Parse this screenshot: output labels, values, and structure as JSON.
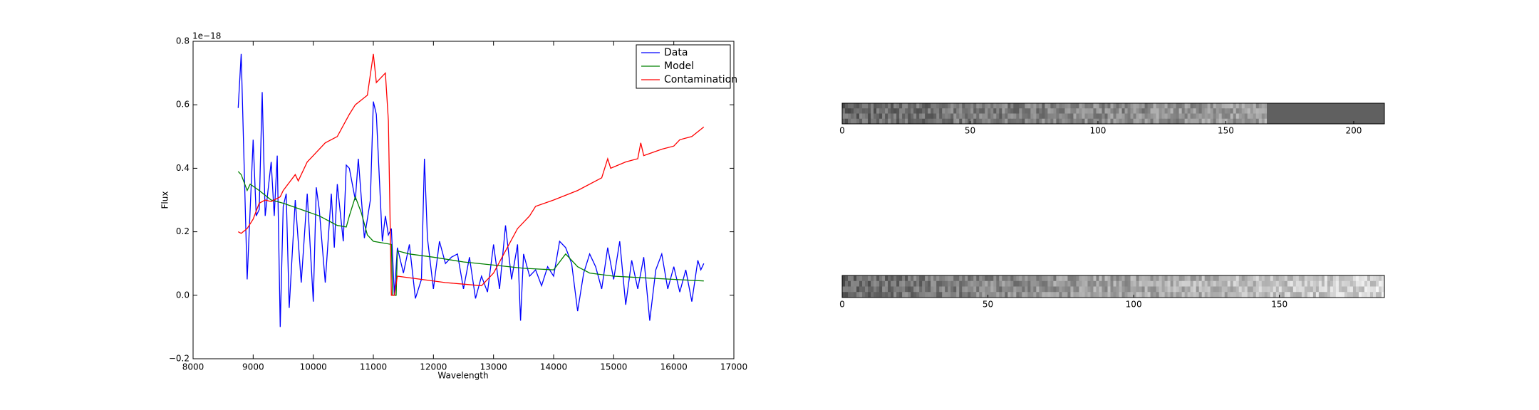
{
  "chart_data": [
    {
      "type": "line",
      "annotation": "1e−18",
      "xlabel": "Wavelength",
      "ylabel": "Flux",
      "xlim": [
        8000,
        17000
      ],
      "xticks": [
        8000,
        9000,
        10000,
        11000,
        12000,
        13000,
        14000,
        15000,
        16000,
        17000
      ],
      "ylim": [
        -0.2,
        0.8
      ],
      "yticks": [
        {
          "value": -0.2,
          "label": "−0.2"
        },
        {
          "value": 0,
          "label": "0.0"
        },
        0.2,
        0.4,
        0.6,
        0.8
      ],
      "legend": "upper right",
      "series": [
        {
          "name": "Data",
          "color": "#0000ff",
          "x": [
            8750,
            8800,
            8900,
            9000,
            9050,
            9100,
            9150,
            9200,
            9300,
            9350,
            9400,
            9450,
            9500,
            9550,
            9600,
            9700,
            9800,
            9900,
            10000,
            10050,
            10100,
            10200,
            10300,
            10350,
            10400,
            10500,
            10550,
            10600,
            10700,
            10750,
            10850,
            10950,
            11000,
            11050,
            11150,
            11200,
            11250,
            11300,
            11350,
            11400,
            11500,
            11600,
            11700,
            11800,
            11850,
            11900,
            12000,
            12100,
            12200,
            12300,
            12400,
            12500,
            12600,
            12700,
            12800,
            12900,
            13000,
            13100,
            13200,
            13300,
            13400,
            13450,
            13500,
            13600,
            13700,
            13800,
            13900,
            14000,
            14100,
            14200,
            14300,
            14400,
            14500,
            14600,
            14700,
            14800,
            14900,
            15000,
            15100,
            15200,
            15300,
            15400,
            15500,
            15600,
            15700,
            15800,
            15900,
            16000,
            16100,
            16200,
            16300,
            16400,
            16450,
            16500
          ],
          "values": [
            0.59,
            0.76,
            0.05,
            0.49,
            0.25,
            0.27,
            0.64,
            0.25,
            0.42,
            0.25,
            0.44,
            -0.1,
            0.28,
            0.32,
            -0.04,
            0.3,
            0.04,
            0.32,
            -0.02,
            0.34,
            0.27,
            0.04,
            0.32,
            0.15,
            0.35,
            0.17,
            0.41,
            0.4,
            0.3,
            0.43,
            0.18,
            0.3,
            0.61,
            0.57,
            0.17,
            0.25,
            0.19,
            0.21,
            0.0,
            0.15,
            0.07,
            0.16,
            -0.01,
            0.05,
            0.43,
            0.18,
            0.02,
            0.17,
            0.1,
            0.12,
            0.13,
            0.02,
            0.12,
            -0.01,
            0.06,
            0.01,
            0.16,
            0.02,
            0.22,
            0.05,
            0.16,
            -0.08,
            0.13,
            0.06,
            0.08,
            0.03,
            0.09,
            0.06,
            0.17,
            0.15,
            0.1,
            -0.05,
            0.07,
            0.13,
            0.09,
            0.02,
            0.15,
            0.05,
            0.17,
            -0.03,
            0.11,
            0.02,
            0.12,
            -0.08,
            0.08,
            0.13,
            0.02,
            0.09,
            0.01,
            0.08,
            -0.02,
            0.11,
            0.08,
            0.1
          ]
        },
        {
          "name": "Model",
          "color": "#008000",
          "x": [
            8750,
            8800,
            8900,
            8950,
            9100,
            9300,
            9500,
            9800,
            10100,
            10400,
            10550,
            10600,
            10700,
            10800,
            10900,
            11000,
            11300,
            11320,
            11380,
            11400,
            11600,
            12000,
            12500,
            13000,
            13500,
            14000,
            14200,
            14400,
            14600,
            15000,
            15500,
            16000,
            16500
          ],
          "values": [
            0.39,
            0.38,
            0.33,
            0.35,
            0.33,
            0.3,
            0.29,
            0.27,
            0.25,
            0.22,
            0.215,
            0.25,
            0.31,
            0.26,
            0.19,
            0.17,
            0.16,
            0.0,
            0.0,
            0.14,
            0.13,
            0.12,
            0.105,
            0.095,
            0.085,
            0.08,
            0.13,
            0.09,
            0.07,
            0.06,
            0.055,
            0.05,
            0.045
          ]
        },
        {
          "name": "Contamination",
          "color": "#ff0000",
          "x": [
            8750,
            8800,
            8900,
            9000,
            9100,
            9200,
            9300,
            9450,
            9500,
            9700,
            9750,
            9900,
            10000,
            10200,
            10400,
            10600,
            10700,
            10900,
            11000,
            11050,
            11200,
            11250,
            11300,
            11350,
            11400,
            11800,
            12200,
            12500,
            12800,
            13000,
            13200,
            13400,
            13600,
            13700,
            14000,
            14400,
            14800,
            14900,
            14950,
            15200,
            15400,
            15450,
            15500,
            15800,
            16000,
            16100,
            16300,
            16500
          ],
          "values": [
            0.2,
            0.195,
            0.21,
            0.24,
            0.29,
            0.3,
            0.295,
            0.31,
            0.33,
            0.38,
            0.36,
            0.42,
            0.44,
            0.48,
            0.5,
            0.57,
            0.6,
            0.63,
            0.76,
            0.67,
            0.7,
            0.55,
            0.0,
            0.0,
            0.06,
            0.05,
            0.04,
            0.035,
            0.03,
            0.07,
            0.14,
            0.21,
            0.25,
            0.28,
            0.3,
            0.33,
            0.37,
            0.43,
            0.4,
            0.42,
            0.43,
            0.48,
            0.44,
            0.46,
            0.47,
            0.49,
            0.5,
            0.53
          ]
        }
      ]
    },
    {
      "type": "image",
      "xlim": [
        0,
        212
      ],
      "xticks": [
        0,
        50,
        100,
        150,
        200
      ]
    },
    {
      "type": "image",
      "xlim": [
        0,
        186
      ],
      "xticks": [
        0,
        50,
        100,
        150
      ]
    }
  ]
}
